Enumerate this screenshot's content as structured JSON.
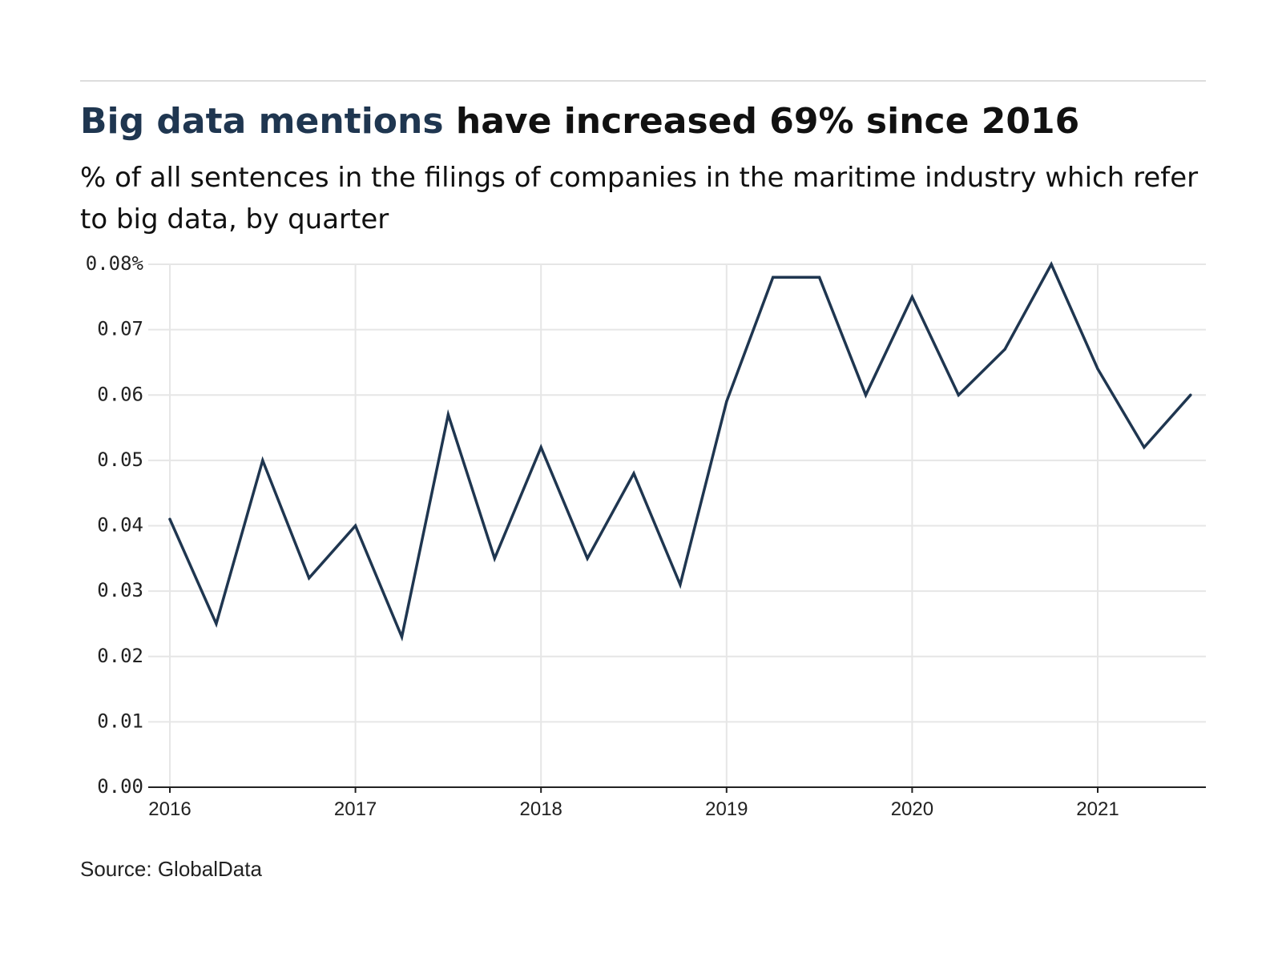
{
  "header": {
    "title_highlight": "Big data mentions",
    "title_rest": " have increased 69% since 2016",
    "subtitle": "% of all sentences in the filings of companies in the maritime industry which refer to big data, by quarter"
  },
  "footer": {
    "source": "Source: GlobalData"
  },
  "colors": {
    "accent": "#1f3650",
    "line": "#1f3650",
    "grid": "#e6e6e6",
    "axis": "#222222"
  },
  "chart_data": {
    "type": "line",
    "title": "Big data mentions have increased 69% since 2016",
    "subtitle": "% of all sentences in the filings of companies in the maritime industry which refer to big data, by quarter",
    "xlabel": "",
    "ylabel": "",
    "x_unit": "year",
    "x": [
      2016.0,
      2016.25,
      2016.5,
      2016.75,
      2017.0,
      2017.25,
      2017.5,
      2017.75,
      2018.0,
      2018.25,
      2018.5,
      2018.75,
      2019.0,
      2019.25,
      2019.5,
      2019.75,
      2020.0,
      2020.25,
      2020.5,
      2020.75,
      2021.0,
      2021.25,
      2021.5
    ],
    "series": [
      {
        "values": [
          0.041,
          0.025,
          0.05,
          0.032,
          0.04,
          0.023,
          0.057,
          0.035,
          0.052,
          0.035,
          0.048,
          0.031,
          0.059,
          0.078,
          0.078,
          0.06,
          0.075,
          0.06,
          0.067,
          0.08,
          0.064,
          0.052,
          0.06
        ]
      }
    ],
    "xlim": [
      2016.0,
      2021.6
    ],
    "ylim": [
      0,
      0.08
    ],
    "x_ticks": [
      2016,
      2017,
      2018,
      2019,
      2020,
      2021
    ],
    "x_tick_labels": [
      "2016",
      "2017",
      "2018",
      "2019",
      "2020",
      "2021"
    ],
    "y_ticks": [
      0,
      0.01,
      0.02,
      0.03,
      0.04,
      0.05,
      0.06,
      0.07,
      0.08
    ],
    "y_tick_labels": [
      "0.00",
      "0.01",
      "0.02",
      "0.03",
      "0.04",
      "0.05",
      "0.06",
      "0.07",
      "0.08%"
    ],
    "grid": true,
    "legend": "none"
  }
}
